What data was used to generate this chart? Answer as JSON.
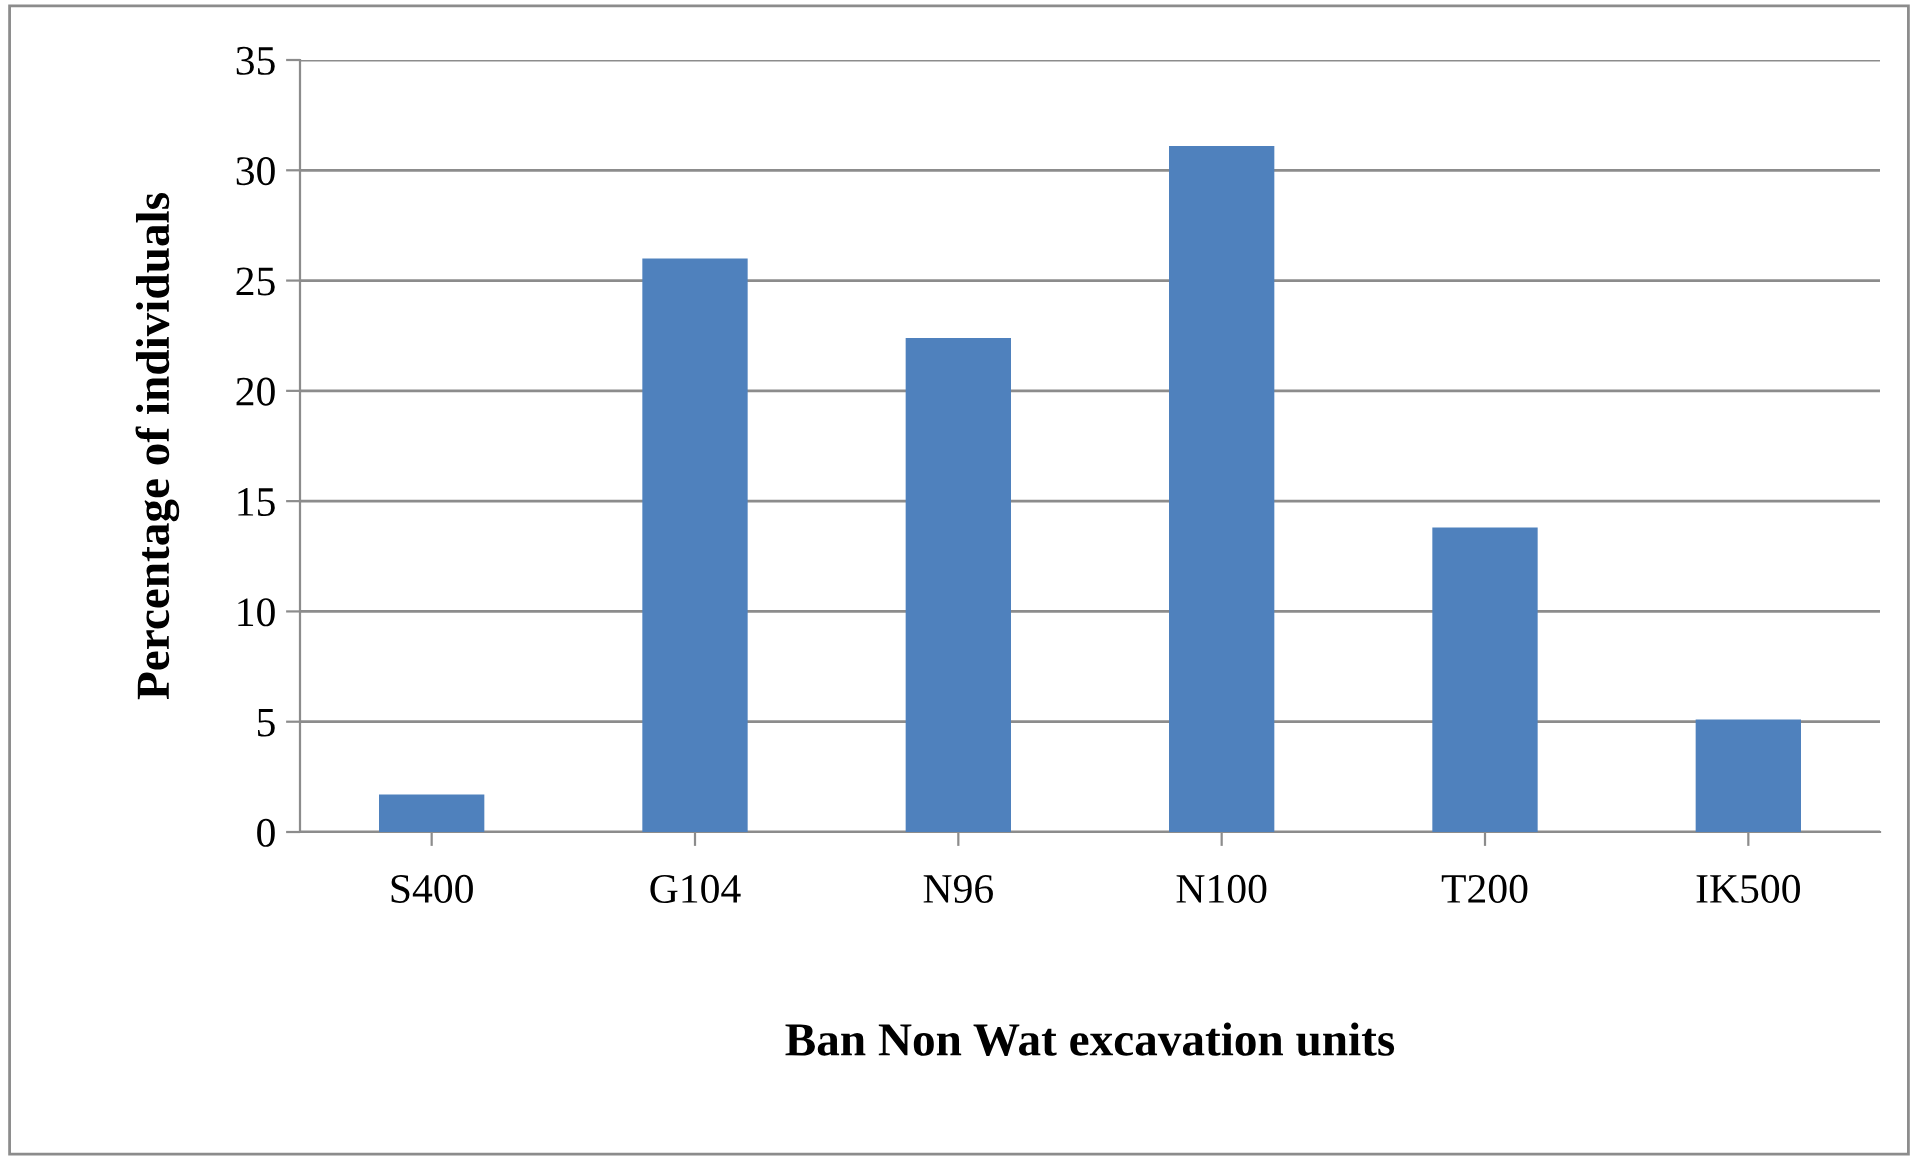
{
  "chart_data": {
    "type": "bar",
    "xlabel": "Ban Non Wat excavation units",
    "ylabel": "Percentage of individuals",
    "categories": [
      "S400",
      "G104",
      "N96",
      "N100",
      "T200",
      "IK500"
    ],
    "values": [
      1.7,
      26.0,
      22.4,
      31.1,
      13.8,
      5.1
    ],
    "color": "#4f81bd",
    "ylim": [
      0,
      35
    ],
    "yticks": [
      0,
      5,
      10,
      15,
      20,
      25,
      30,
      35
    ],
    "grid": "y",
    "legend": false
  }
}
